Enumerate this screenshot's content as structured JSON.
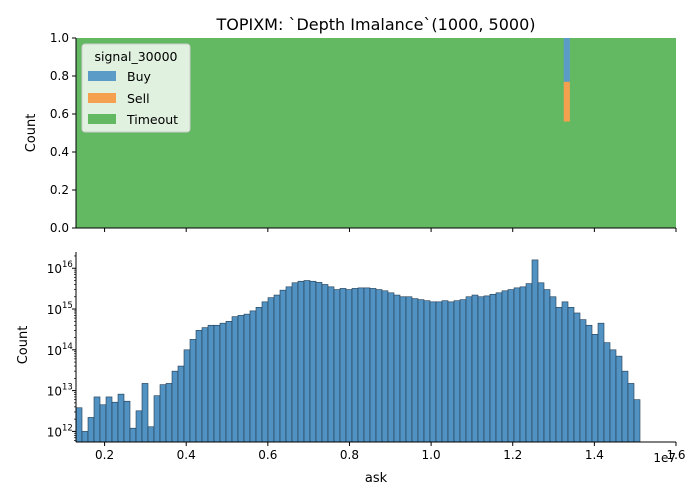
{
  "title": "TOPIXM: `Depth Imalance`(1000, 5000)",
  "colors": {
    "buy": "#5b9bc8",
    "sell": "#f4a04e",
    "timeout": "#63b862",
    "hist": "#5192c2",
    "edge": "#1f3a52"
  },
  "chart_data": [
    {
      "type": "area",
      "title": "",
      "xlabel": "",
      "ylabel": "Count",
      "xlim": [
        1300000,
        16000000
      ],
      "ylim": [
        0,
        1
      ],
      "yticks": [
        "0.0",
        "0.2",
        "0.4",
        "0.6",
        "0.8",
        "1.0"
      ],
      "legend": {
        "title": "signal_30000",
        "placement": "top-left",
        "entries": [
          "Buy",
          "Sell",
          "Timeout"
        ]
      },
      "series": [
        {
          "name": "Timeout",
          "description_value": "fills 0.0–1.0 across full range"
        },
        {
          "name": "Sell",
          "x_range": [
            13250000,
            13400000
          ],
          "y_range": [
            0.56,
            0.77
          ]
        },
        {
          "name": "Buy",
          "x_range": [
            13250000,
            13400000
          ],
          "y_range": [
            0.77,
            1.0
          ]
        }
      ]
    },
    {
      "type": "bar",
      "title": "",
      "xlabel": "ask",
      "ylabel": "Count",
      "x_multiplier": "1e7",
      "xlim": [
        1300000,
        16000000
      ],
      "yscale": "log",
      "ylim": [
        550000000000,
        25000000000000000
      ],
      "xticks": [
        "0.2",
        "0.4",
        "0.6",
        "0.8",
        "1.0",
        "1.2",
        "1.4",
        "1.6"
      ],
      "yticks": [
        "10",
        "10",
        "10",
        "10",
        "10"
      ],
      "ytick_exponents": [
        "12",
        "13",
        "14",
        "15",
        "16"
      ],
      "bin_width": 147000,
      "values": [
        3800000000000.0,
        1000000000000.0,
        2200000000000.0,
        7000000000000.0,
        4500000000000.0,
        7000000000000.0,
        5200000000000.0,
        8200000000000.0,
        5500000000000.0,
        1200000000000.0,
        3200000000000.0,
        15000000000000.0,
        1300000000000.0,
        7500000000000.0,
        14000000000000.0,
        15000000000000.0,
        30000000000000.0,
        40000000000000.0,
        100000000000000.0,
        180000000000000.0,
        300000000000000.0,
        350000000000000.0,
        400000000000000.0,
        400000000000000.0,
        450000000000000.0,
        500000000000000.0,
        650000000000000.0,
        700000000000000.0,
        750000000000000.0,
        900000000000000.0,
        1100000000000000.0,
        1500000000000000.0,
        1900000000000000.0,
        2200000000000000.0,
        2900000000000000.0,
        3500000000000000.0,
        4400000000000000.0,
        4800000000000000.0,
        5000000000000000.0,
        4800000000000000.0,
        4500000000000000.0,
        4000000000000000.0,
        3500000000000000.0,
        3000000000000000.0,
        3200000000000000.0,
        3000000000000000.0,
        3200000000000000.0,
        3300000000000000.0,
        3300000000000000.0,
        3200000000000000.0,
        3000000000000000.0,
        2800000000000000.0,
        2500000000000000.0,
        2200000000000000.0,
        2000000000000000.0,
        2000000000000000.0,
        1800000000000000.0,
        1700000000000000.0,
        1600000000000000.0,
        1500000000000000.0,
        1500000000000000.0,
        1600000000000000.0,
        1500000000000000.0,
        1600000000000000.0,
        1700000000000000.0,
        2000000000000000.0,
        2200000000000000.0,
        2000000000000000.0,
        2100000000000000.0,
        2300000000000000.0,
        2500000000000000.0,
        2800000000000000.0,
        3000000000000000.0,
        3300000000000000.0,
        3500000000000000.0,
        4200000000000000.0,
        1.6e+16,
        4400000000000000.0,
        3000000000000000.0,
        2000000000000000.0,
        1100000000000000.0,
        1500000000000000.0,
        1100000000000000.0,
        800000000000000.0,
        550000000000000.0,
        400000000000000.0,
        240000000000000.0,
        450000000000000.0,
        150000000000000.0,
        100000000000000.0,
        70000000000000.0,
        30000000000000.0,
        15000000000000.0,
        6000000000000.0
      ]
    }
  ]
}
